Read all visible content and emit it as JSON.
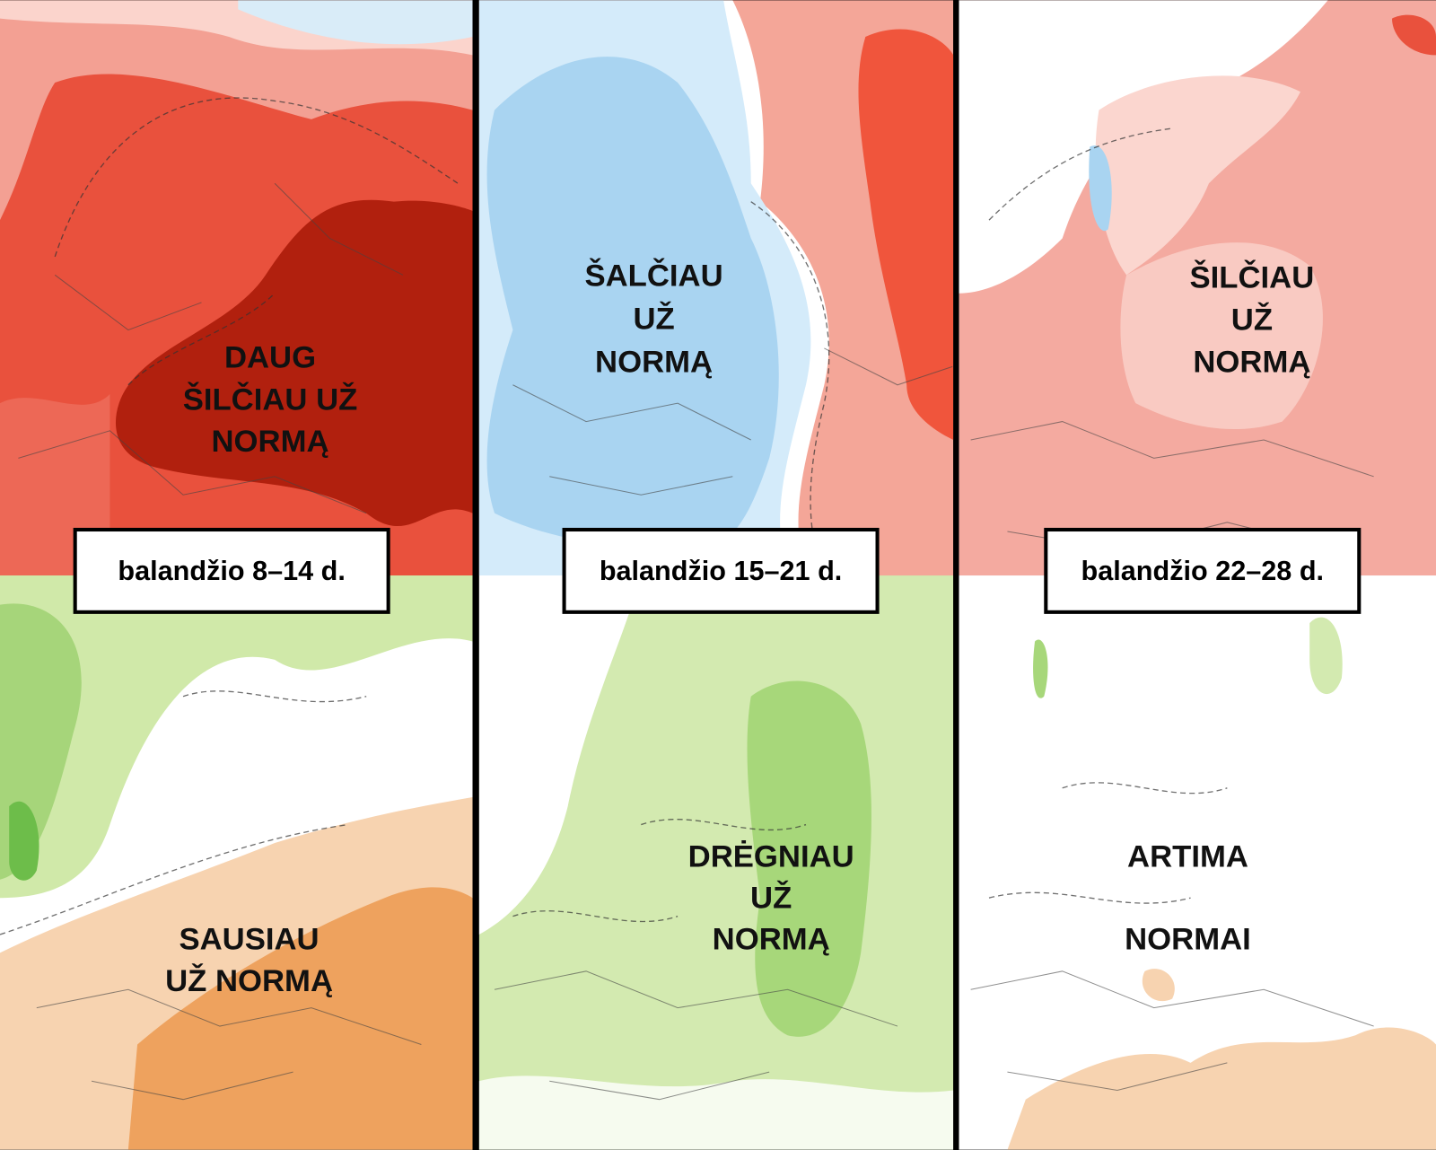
{
  "panels": [
    {
      "temperature_label": [
        "DAUG",
        "ŠILČIAU UŽ",
        "NORMĄ"
      ],
      "date": "balandžio 8–14 d.",
      "precipitation_label": [
        "SAUSIAU",
        "UŽ NORMĄ"
      ]
    },
    {
      "temperature_label": [
        "ŠALČIAU",
        "UŽ",
        "NORMĄ"
      ],
      "date": "balandžio 15–21 d.",
      "precipitation_label": [
        "DRĖGNIAU",
        "UŽ",
        "NORMĄ"
      ]
    },
    {
      "temperature_label": [
        "ŠILČIAU",
        "UŽ",
        "NORMĄ"
      ],
      "date": "balandžio 22–28 d.",
      "precipitation_label": [
        "ARTIMA",
        "NORMAI"
      ]
    }
  ]
}
